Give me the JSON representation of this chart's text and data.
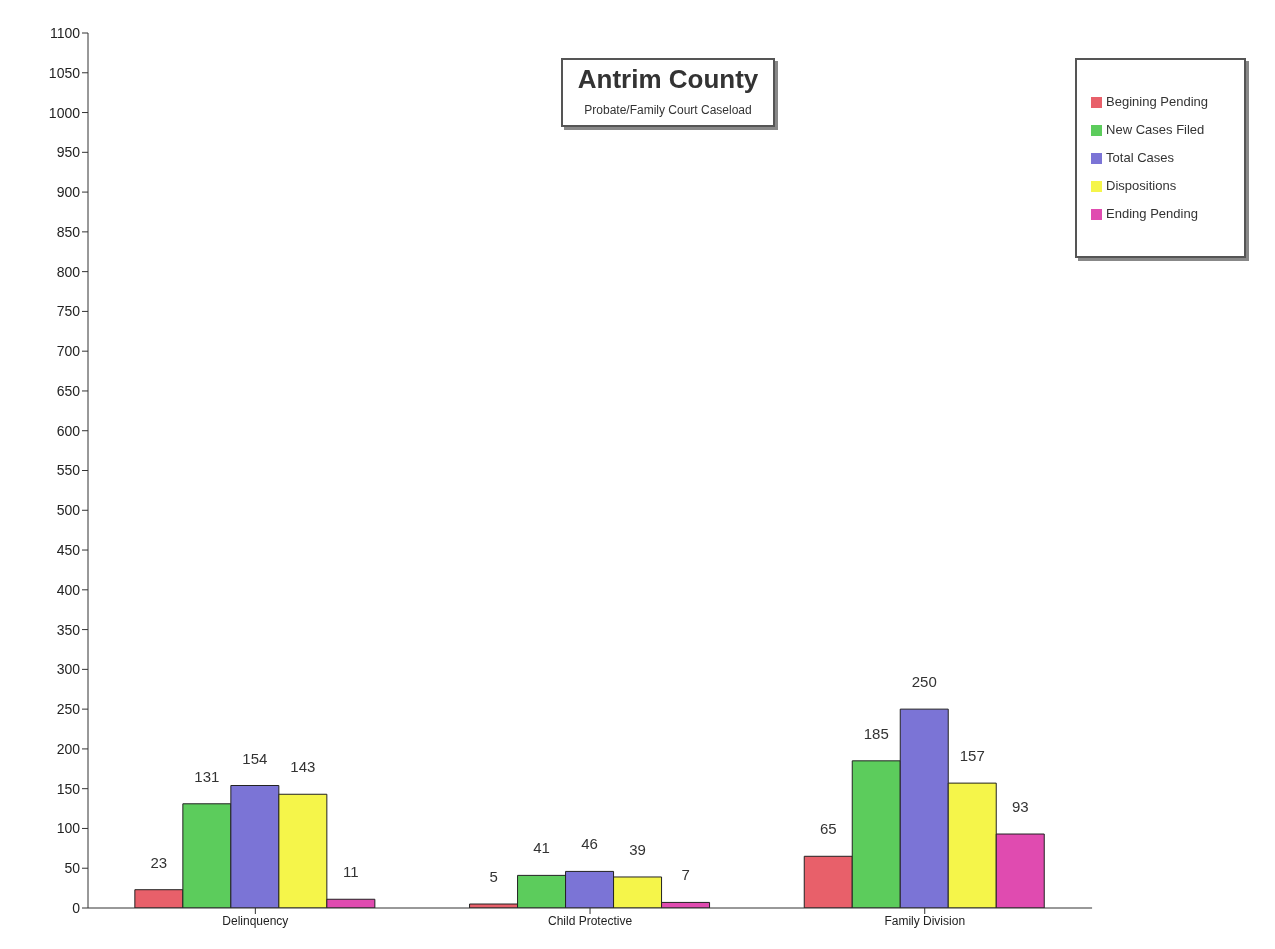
{
  "chart_data": {
    "type": "bar",
    "title": "Antrim County",
    "subtitle": "Probate/Family Court Caseload",
    "categories": [
      "Delinquency",
      "Child Protective",
      "Family Division"
    ],
    "series": [
      {
        "name": "Begining Pending",
        "color": "#e8606a",
        "values": [
          23,
          5,
          65
        ]
      },
      {
        "name": "New Cases Filed",
        "color": "#5ccc5c",
        "values": [
          131,
          41,
          185
        ]
      },
      {
        "name": "Total Cases",
        "color": "#7b74d6",
        "values": [
          154,
          46,
          250
        ]
      },
      {
        "name": "Dispositions",
        "color": "#f5f54a",
        "values": [
          143,
          39,
          157
        ]
      },
      {
        "name": "Ending Pending",
        "color": "#e04bb0",
        "values": [
          11,
          7,
          93
        ]
      }
    ],
    "ylim": [
      0,
      1100
    ],
    "yticks": [
      0,
      50,
      100,
      150,
      200,
      250,
      300,
      350,
      400,
      450,
      500,
      550,
      600,
      650,
      700,
      750,
      800,
      850,
      900,
      950,
      1000,
      1050,
      1100
    ],
    "data_labels": true,
    "legend": "top right",
    "grid": false
  }
}
